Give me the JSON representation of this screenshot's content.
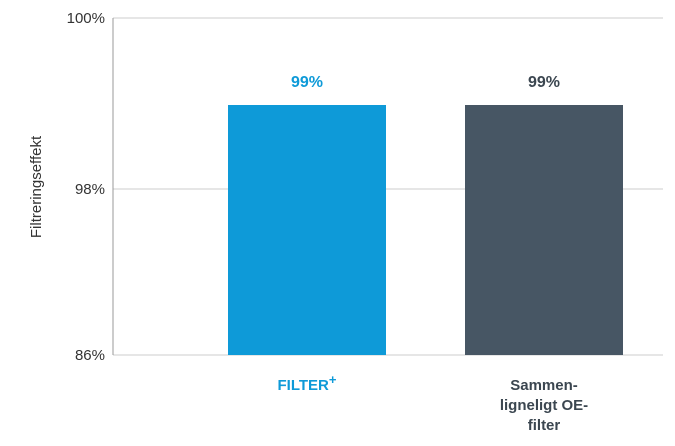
{
  "chart_data": {
    "type": "bar",
    "ylabel": "Filtreringseffekt",
    "y_ticks": [
      {
        "label": "100%"
      },
      {
        "label": "98%"
      },
      {
        "label": "86%"
      }
    ],
    "grid": true,
    "categories": [
      {
        "name": "FILTER",
        "superscript": "+",
        "lines": [
          "FILTER"
        ]
      },
      {
        "name": "Sammen-ligneligt OE-filter",
        "superscript": "",
        "lines": [
          "Sammen-",
          "ligneligt OE-",
          "filter"
        ]
      }
    ],
    "values": [
      99,
      99
    ],
    "value_labels": [
      "99%",
      "99%"
    ],
    "colors": {
      "bars": [
        "#0e9ad8",
        "#475664"
      ],
      "labels": [
        "#0e9ad8",
        "#3b4650"
      ],
      "grid": "#cccccc",
      "axis": "#999999"
    }
  }
}
